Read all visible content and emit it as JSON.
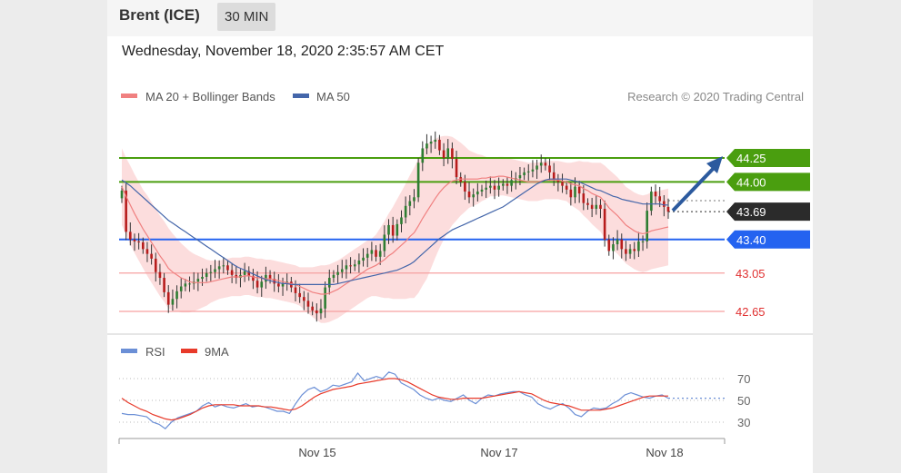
{
  "header": {
    "symbol": "Brent (ICE)",
    "timeframe": "30 MIN"
  },
  "timestamp": "Wednesday, November 18, 2020 2:35:57 AM CET",
  "legend": {
    "ma20": "MA 20 + Bollinger Bands",
    "ma50": "MA 50",
    "credit": "Research © 2020 Trading Central"
  },
  "rsi_legend": {
    "rsi": "RSI",
    "ma9": "9MA"
  },
  "colors": {
    "resistance": "#4a9e0f",
    "support": "#2463f0",
    "current": "#2b2b2b",
    "ma20": "#f08080",
    "ma50": "#4466aa",
    "bands": "#fbd2d2",
    "rsi": "#6b8fd6",
    "rsi_ma": "#e83a2a",
    "arrow": "#2c5a9e"
  },
  "chart_data": [
    {
      "type": "candlestick",
      "ylim": [
        42.5,
        44.55
      ],
      "x_tick_labels": [
        "Nov 15",
        "Nov 17",
        "Nov 18"
      ],
      "levels": [
        {
          "label": "44.25",
          "value": 44.25,
          "kind": "resistance"
        },
        {
          "label": "44.00",
          "value": 44.0,
          "kind": "resistance"
        },
        {
          "label": "43.69",
          "value": 43.69,
          "kind": "current"
        },
        {
          "label": "43.40",
          "value": 43.4,
          "kind": "support"
        },
        {
          "label": "43.05",
          "value": 43.05,
          "kind": "support-minor"
        },
        {
          "label": "42.65",
          "value": 42.65,
          "kind": "support-minor"
        }
      ],
      "close": [
        43.91,
        43.48,
        43.4,
        43.38,
        43.37,
        43.3,
        43.25,
        43.2,
        43.06,
        43.0,
        42.85,
        42.72,
        42.78,
        42.86,
        42.91,
        42.94,
        42.94,
        42.96,
        42.99,
        43.01,
        43.05,
        43.06,
        43.09,
        43.12,
        43.13,
        43.08,
        43.03,
        43.0,
        43.03,
        43.07,
        43.02,
        42.97,
        42.9,
        42.96,
        43.03,
        42.99,
        42.94,
        42.91,
        42.94,
        42.96,
        42.9,
        42.84,
        42.8,
        42.76,
        42.7,
        42.66,
        42.63,
        42.68,
        42.9,
        43.0,
        43.03,
        43.06,
        43.09,
        43.13,
        43.12,
        43.14,
        43.18,
        43.21,
        43.25,
        43.29,
        43.22,
        43.28,
        43.45,
        43.55,
        43.44,
        43.56,
        43.63,
        43.75,
        43.8,
        43.84,
        44.2,
        44.35,
        44.4,
        44.42,
        44.44,
        44.33,
        44.25,
        44.35,
        44.24,
        44.05,
        44.0,
        43.9,
        43.84,
        43.87,
        43.9,
        43.92,
        43.94,
        43.96,
        43.92,
        43.96,
        43.98,
        43.96,
        44.02,
        44.04,
        44.07,
        44.1,
        44.11,
        44.13,
        44.17,
        44.2,
        44.17,
        44.1,
        44.02,
        44.0,
        43.96,
        43.92,
        43.84,
        43.95,
        43.88,
        43.78,
        43.76,
        43.72,
        43.76,
        43.72,
        43.4,
        43.28,
        43.35,
        43.4,
        43.3,
        43.25,
        43.3,
        43.28,
        43.38,
        43.38,
        43.7,
        43.9,
        43.85,
        43.8,
        43.74,
        43.69
      ],
      "ma20": [
        43.95,
        43.85,
        43.76,
        43.67,
        43.59,
        43.51,
        43.44,
        43.37,
        43.3,
        43.23,
        43.17,
        43.1,
        43.06,
        43.03,
        43.0,
        42.98,
        42.96,
        42.95,
        42.95,
        42.95,
        42.95,
        42.96,
        42.97,
        42.98,
        42.99,
        43.0,
        43.01,
        43.01,
        43.01,
        43.02,
        43.02,
        43.01,
        43.0,
        43.0,
        42.99,
        42.99,
        42.98,
        42.97,
        42.96,
        42.95,
        42.94,
        42.93,
        42.91,
        42.89,
        42.87,
        42.85,
        42.84,
        42.83,
        42.83,
        42.84,
        42.86,
        42.88,
        42.91,
        42.94,
        42.97,
        43.0,
        43.03,
        43.06,
        43.09,
        43.11,
        43.13,
        43.16,
        43.19,
        43.23,
        43.26,
        43.3,
        43.34,
        43.38,
        43.43,
        43.47,
        43.54,
        43.62,
        43.69,
        43.76,
        43.83,
        43.89,
        43.94,
        43.98,
        44.01,
        44.02,
        44.03,
        44.03,
        44.03,
        44.03,
        44.03,
        44.04,
        44.04,
        44.05,
        44.05,
        44.06,
        44.06,
        44.05,
        44.04,
        44.03,
        44.02,
        44.01,
        44.0,
        44.0,
        44.0,
        44.01,
        44.02,
        44.02,
        44.02,
        44.02,
        44.01,
        44.0,
        43.98,
        43.97,
        43.96,
        43.93,
        43.91,
        43.88,
        43.86,
        43.84,
        43.79,
        43.73,
        43.69,
        43.65,
        43.6,
        43.55,
        43.52,
        43.49,
        43.47,
        43.46,
        43.47,
        43.49,
        43.5,
        43.51,
        43.52,
        43.53
      ],
      "ma50": [
        44.02,
        43.99,
        43.96,
        43.92,
        43.88,
        43.84,
        43.8,
        43.76,
        43.72,
        43.68,
        43.64,
        43.6,
        43.57,
        43.54,
        43.51,
        43.48,
        43.45,
        43.42,
        43.39,
        43.36,
        43.33,
        43.3,
        43.27,
        43.24,
        43.21,
        43.18,
        43.15,
        43.12,
        43.1,
        43.08,
        43.06,
        43.04,
        43.02,
        43.0,
        42.98,
        42.97,
        42.96,
        42.95,
        42.94,
        42.94,
        42.93,
        42.93,
        42.93,
        42.93,
        42.93,
        42.93,
        42.93,
        42.93,
        42.93,
        42.93,
        42.93,
        42.94,
        42.95,
        42.96,
        42.97,
        42.98,
        42.99,
        43.0,
        43.01,
        43.02,
        43.03,
        43.04,
        43.05,
        43.06,
        43.07,
        43.08,
        43.1,
        43.12,
        43.14,
        43.17,
        43.21,
        43.25,
        43.29,
        43.33,
        43.37,
        43.41,
        43.44,
        43.47,
        43.5,
        43.52,
        43.54,
        43.56,
        43.58,
        43.6,
        43.62,
        43.64,
        43.66,
        43.68,
        43.7,
        43.72,
        43.74,
        43.77,
        43.8,
        43.83,
        43.86,
        43.89,
        43.92,
        43.95,
        43.98,
        44.0,
        44.02,
        44.03,
        44.03,
        44.03,
        44.03,
        44.03,
        44.02,
        44.01,
        44.0,
        43.98,
        43.96,
        43.94,
        43.92,
        43.91,
        43.89,
        43.87,
        43.85,
        43.84,
        43.82,
        43.81,
        43.8,
        43.79,
        43.78,
        43.77,
        43.77,
        43.77,
        43.77,
        43.77,
        43.76,
        43.76
      ],
      "bb_width": [
        0.4,
        0.4,
        0.41,
        0.41,
        0.41,
        0.41,
        0.42,
        0.42,
        0.42,
        0.42,
        0.42,
        0.42,
        0.4,
        0.38,
        0.36,
        0.34,
        0.32,
        0.3,
        0.28,
        0.26,
        0.24,
        0.22,
        0.21,
        0.2,
        0.2,
        0.2,
        0.2,
        0.2,
        0.2,
        0.2,
        0.2,
        0.2,
        0.2,
        0.2,
        0.2,
        0.2,
        0.2,
        0.2,
        0.2,
        0.2,
        0.2,
        0.2,
        0.2,
        0.22,
        0.24,
        0.26,
        0.28,
        0.3,
        0.3,
        0.3,
        0.3,
        0.3,
        0.3,
        0.3,
        0.3,
        0.3,
        0.3,
        0.3,
        0.3,
        0.3,
        0.32,
        0.36,
        0.4,
        0.44,
        0.48,
        0.52,
        0.56,
        0.6,
        0.64,
        0.68,
        0.7,
        0.7,
        0.7,
        0.66,
        0.62,
        0.58,
        0.54,
        0.5,
        0.46,
        0.42,
        0.38,
        0.34,
        0.3,
        0.28,
        0.26,
        0.24,
        0.22,
        0.2,
        0.2,
        0.2,
        0.2,
        0.2,
        0.2,
        0.2,
        0.2,
        0.2,
        0.2,
        0.2,
        0.2,
        0.2,
        0.2,
        0.2,
        0.2,
        0.2,
        0.2,
        0.2,
        0.22,
        0.24,
        0.26,
        0.28,
        0.3,
        0.32,
        0.34,
        0.36,
        0.38,
        0.4,
        0.4,
        0.4,
        0.4,
        0.4,
        0.4,
        0.4,
        0.4,
        0.4,
        0.4,
        0.4,
        0.4,
        0.4,
        0.4,
        0.4
      ]
    },
    {
      "type": "line",
      "name": "RSI",
      "ylim": [
        20,
        80
      ],
      "y_ticks": [
        70,
        50,
        30
      ],
      "rsi": [
        38,
        37,
        37,
        36,
        35,
        30,
        28,
        24,
        30,
        34,
        36,
        38,
        40,
        45,
        48,
        44,
        46,
        44,
        43,
        45,
        47,
        44,
        45,
        44,
        42,
        40,
        40,
        38,
        47,
        55,
        60,
        62,
        58,
        60,
        64,
        63,
        65,
        67,
        75,
        68,
        70,
        72,
        70,
        76,
        74,
        66,
        63,
        60,
        55,
        52,
        50,
        52,
        50,
        49,
        52,
        55,
        50,
        47,
        52,
        55,
        54,
        56,
        57,
        58,
        58,
        55,
        53,
        47,
        44,
        42,
        45,
        47,
        43,
        37,
        35,
        40,
        43,
        42,
        43,
        47,
        50,
        55,
        57,
        55,
        53,
        52,
        54,
        55,
        52
      ],
      "ma9": [
        52,
        48,
        45,
        42,
        40,
        37,
        35,
        33,
        32,
        33,
        35,
        37,
        40,
        43,
        45,
        46,
        46,
        46,
        46,
        45,
        45,
        45,
        45,
        44,
        44,
        43,
        42,
        41,
        42,
        45,
        49,
        53,
        56,
        58,
        60,
        61,
        62,
        63,
        65,
        66,
        67,
        68,
        69,
        70,
        70,
        69,
        67,
        64,
        61,
        58,
        55,
        53,
        52,
        51,
        51,
        52,
        52,
        52,
        52,
        53,
        54,
        55,
        56,
        57,
        58,
        57,
        56,
        53,
        50,
        48,
        47,
        46,
        45,
        43,
        41,
        41,
        41,
        41,
        42,
        43,
        45,
        47,
        49,
        51,
        53,
        54,
        54,
        54,
        54
      ],
      "last_value": 52
    }
  ]
}
